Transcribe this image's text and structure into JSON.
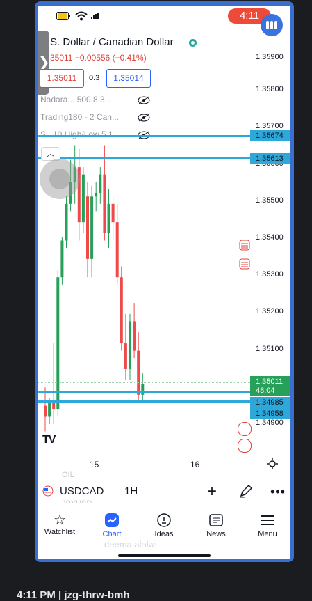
{
  "status": {
    "time": "4:11"
  },
  "header": {
    "title": "S. Dollar / Canadian Dollar",
    "price": "35011",
    "change": "−0.00556",
    "change_pct": "(−0.41%)"
  },
  "trade": {
    "bid": "1.35011",
    "spread": "0.3",
    "ask": "1.35014"
  },
  "indicators": [
    {
      "label": "Nadara... 500 8 3 ..."
    },
    {
      "label": "Trading180 - 2 Can..."
    },
    {
      "label": "S.. 10 High/Low 5 1..."
    }
  ],
  "price_axis": [
    "1.35900",
    "1.35800",
    "1.35700",
    "1.35600",
    "1.35500",
    "1.35400",
    "1.35300",
    "1.35200",
    "1.35100",
    "1.34900"
  ],
  "price_tags": {
    "line1": "1.35674",
    "line2": "1.35613",
    "current": "1.35011",
    "countdown": "48:04",
    "line3": "1.34985",
    "line4": "1.34958"
  },
  "time_axis": [
    "15",
    "16"
  ],
  "toolbar": {
    "symbol": "USDCAD",
    "interval": "1H",
    "ghost_top": "OIL",
    "ghost_bottom": "JPYUSD"
  },
  "nav": [
    {
      "label": "Watchlist"
    },
    {
      "label": "Chart"
    },
    {
      "label": "Ideas"
    },
    {
      "label": "News"
    },
    {
      "label": "Menu"
    }
  ],
  "watermark": "deema alalwi",
  "footer": "4:11 PM  |  jzg-thrw-bmh",
  "colors": {
    "up": "#27a05a",
    "down": "#ee4a4a",
    "line": "#2ea7d9",
    "accent": "#2962ff"
  },
  "chart_data": {
    "type": "candlestick",
    "symbol": "USDCAD",
    "interval": "1H",
    "ylim": [
      1.3486,
      1.3596
    ],
    "horizontal_lines": [
      1.35674,
      1.35613,
      1.34985,
      1.34958
    ],
    "current_price": 1.35011,
    "candles": [
      {
        "o": 1.3495,
        "h": 1.35,
        "l": 1.3488,
        "c": 1.3492
      },
      {
        "o": 1.3492,
        "h": 1.3497,
        "l": 1.349,
        "c": 1.3496
      },
      {
        "o": 1.3496,
        "h": 1.3512,
        "l": 1.349,
        "c": 1.3494
      },
      {
        "o": 1.3494,
        "h": 1.3532,
        "l": 1.3492,
        "c": 1.353
      },
      {
        "o": 1.353,
        "h": 1.3541,
        "l": 1.3528,
        "c": 1.354
      },
      {
        "o": 1.354,
        "h": 1.3552,
        "l": 1.3538,
        "c": 1.355
      },
      {
        "o": 1.355,
        "h": 1.3562,
        "l": 1.3548,
        "c": 1.3556
      },
      {
        "o": 1.3556,
        "h": 1.3566,
        "l": 1.355,
        "c": 1.356
      },
      {
        "o": 1.356,
        "h": 1.3565,
        "l": 1.354,
        "c": 1.3545
      },
      {
        "o": 1.3545,
        "h": 1.356,
        "l": 1.3542,
        "c": 1.3558
      },
      {
        "o": 1.3552,
        "h": 1.3556,
        "l": 1.353,
        "c": 1.3535
      },
      {
        "o": 1.3535,
        "h": 1.3555,
        "l": 1.353,
        "c": 1.3552
      },
      {
        "o": 1.3552,
        "h": 1.3556,
        "l": 1.3548,
        "c": 1.3553
      },
      {
        "o": 1.3553,
        "h": 1.356,
        "l": 1.355,
        "c": 1.3558
      },
      {
        "o": 1.3558,
        "h": 1.3566,
        "l": 1.354,
        "c": 1.3542
      },
      {
        "o": 1.3542,
        "h": 1.3554,
        "l": 1.3538,
        "c": 1.355
      },
      {
        "o": 1.355,
        "h": 1.3552,
        "l": 1.354,
        "c": 1.3545
      },
      {
        "o": 1.3545,
        "h": 1.355,
        "l": 1.3528,
        "c": 1.353
      },
      {
        "o": 1.353,
        "h": 1.3533,
        "l": 1.351,
        "c": 1.3512
      },
      {
        "o": 1.3512,
        "h": 1.352,
        "l": 1.3502,
        "c": 1.3505
      },
      {
        "o": 1.3505,
        "h": 1.352,
        "l": 1.3502,
        "c": 1.3518
      },
      {
        "o": 1.3518,
        "h": 1.3523,
        "l": 1.3508,
        "c": 1.351
      },
      {
        "o": 1.351,
        "h": 1.3515,
        "l": 1.3496,
        "c": 1.3498
      },
      {
        "o": 1.3498,
        "h": 1.3504,
        "l": 1.3496,
        "c": 1.3501
      }
    ]
  }
}
